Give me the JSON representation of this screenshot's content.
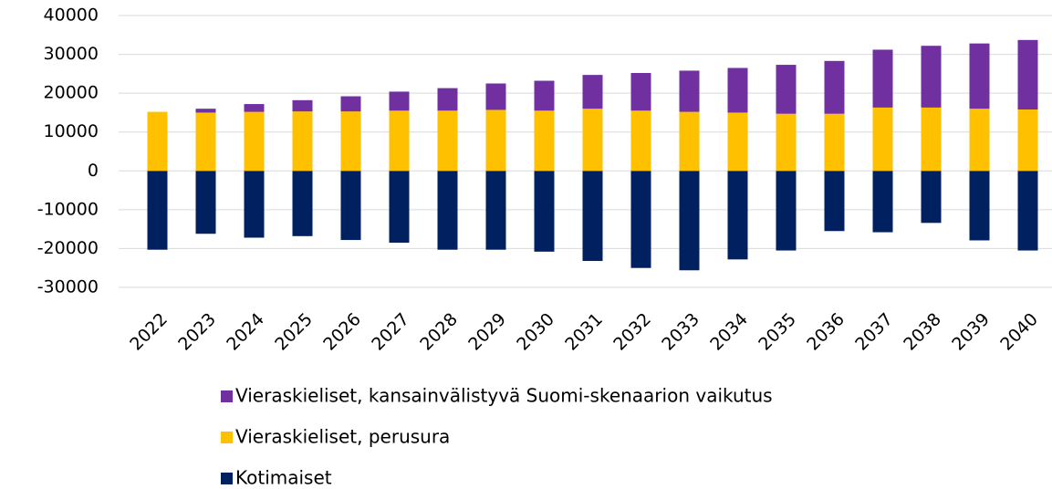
{
  "chart_data": {
    "type": "bar",
    "stacked": true,
    "categories": [
      "2022",
      "2023",
      "2024",
      "2025",
      "2026",
      "2027",
      "2028",
      "2029",
      "2030",
      "2031",
      "2032",
      "2033",
      "2034",
      "2035",
      "2036",
      "2037",
      "2038",
      "2039",
      "2040"
    ],
    "series": [
      {
        "name": "Kotimaiset",
        "color": "#002060",
        "values": [
          -20300,
          -16200,
          -17200,
          -16800,
          -17800,
          -18500,
          -20300,
          -20300,
          -20800,
          -23200,
          -25000,
          -25600,
          -22800,
          -20500,
          -15500,
          -15800,
          -13400,
          -17900,
          -20500
        ]
      },
      {
        "name": "Vieraskieliset, perusura",
        "color": "#ffc000",
        "values": [
          15200,
          15000,
          15200,
          15300,
          15300,
          15500,
          15500,
          15700,
          15500,
          16000,
          15500,
          15200,
          15000,
          14700,
          14700,
          16300,
          16300,
          16000,
          15800
        ]
      },
      {
        "name": "Vieraskieliset, kansainvälistyvä Suomi-skenaarion vaikutus",
        "color": "#7030a0",
        "values": [
          0,
          1000,
          2000,
          2900,
          3900,
          4900,
          5800,
          6800,
          7700,
          8700,
          9700,
          10600,
          11500,
          12600,
          13600,
          14900,
          15900,
          16800,
          17900
        ]
      }
    ],
    "ylim": [
      -30000,
      40000
    ],
    "yticks": [
      -30000,
      -20000,
      -10000,
      0,
      10000,
      20000,
      30000,
      40000
    ],
    "grid": true
  }
}
